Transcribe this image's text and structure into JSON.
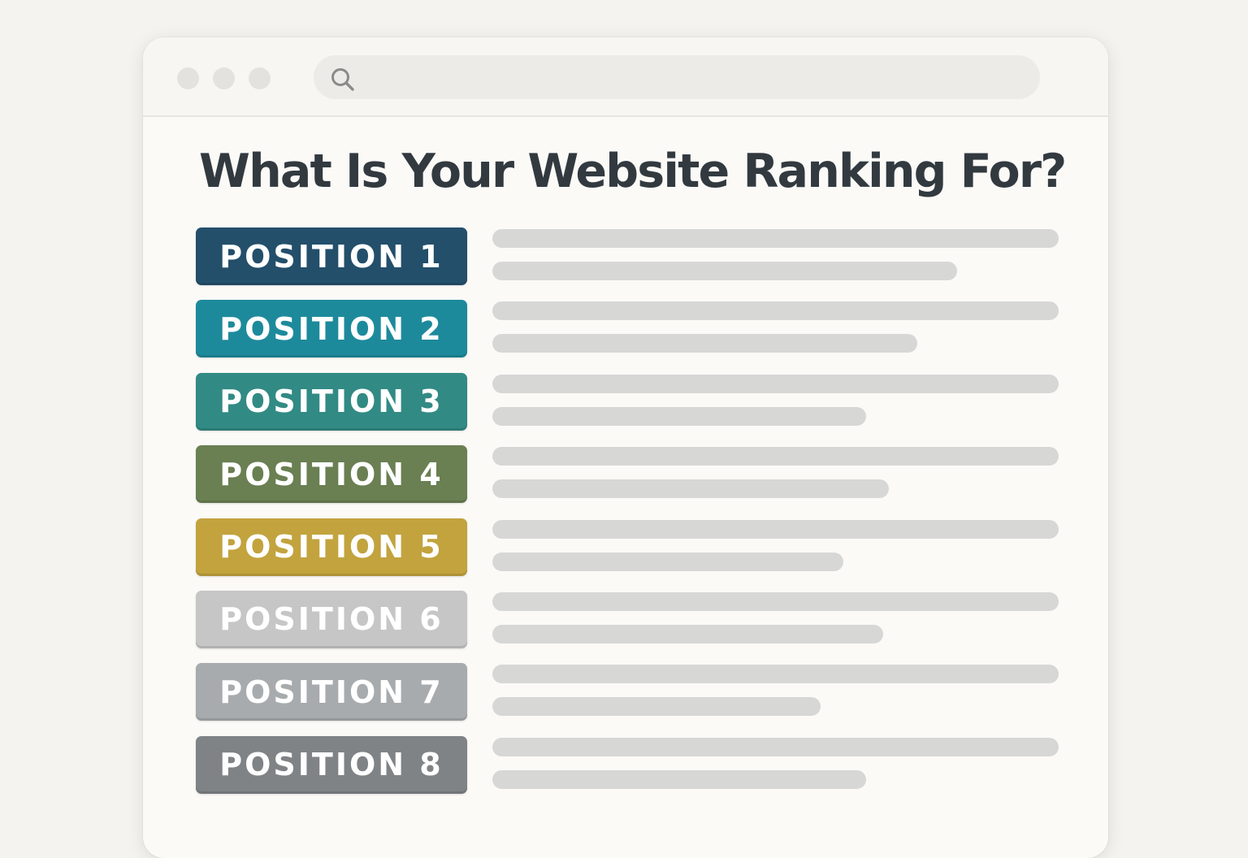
{
  "browser": {
    "window_controls": [
      "close",
      "minimize",
      "maximize"
    ],
    "search": {
      "icon": "search-icon",
      "value": "",
      "placeholder": ""
    }
  },
  "page": {
    "title": "What Is Your Website Ranking For?"
  },
  "results": [
    {
      "label": "POSITION 1",
      "color": "#234f6b",
      "snippet_fill": 0.82
    },
    {
      "label": "POSITION 2",
      "color": "#1d8a9c",
      "snippet_fill": 0.75
    },
    {
      "label": "POSITION 3",
      "color": "#328a84",
      "snippet_fill": 0.66
    },
    {
      "label": "POSITION 4",
      "color": "#6a7f52",
      "snippet_fill": 0.7
    },
    {
      "label": "POSITION 5",
      "color": "#c2a33e",
      "snippet_fill": 0.62
    },
    {
      "label": "POSITION 6",
      "color": "#c6c6c6",
      "snippet_fill": 0.69
    },
    {
      "label": "POSITION 7",
      "color": "#a7abad",
      "snippet_fill": 0.58
    },
    {
      "label": "POSITION 8",
      "color": "#7f8386",
      "snippet_fill": 0.66
    }
  ]
}
